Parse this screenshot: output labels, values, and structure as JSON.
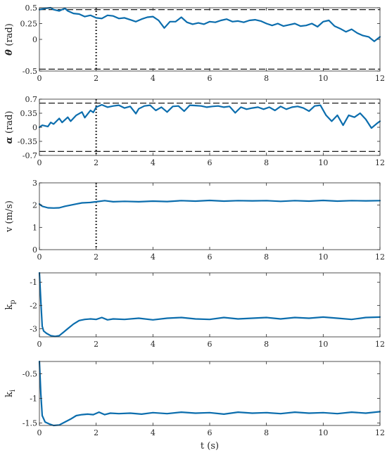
{
  "colors": {
    "series": "#0b6dad",
    "axis": "#262626",
    "limit": "#000000"
  },
  "xlabel": "t (s)",
  "chart_data": [
    {
      "type": "line",
      "ylabel": {
        "symbol": "θ",
        "unit": "(rad)"
      },
      "xlim": [
        0,
        12
      ],
      "ylim": [
        -0.5,
        0.5
      ],
      "xticks": [
        0,
        2,
        4,
        6,
        8,
        10,
        12
      ],
      "yticks": [
        -0.5,
        0,
        0.25,
        0.5
      ],
      "ytick_labels": [
        "-0.5",
        "0",
        "0.25",
        "0.5"
      ],
      "hlines": [
        0.47,
        -0.47
      ],
      "vline": 2,
      "series": [
        {
          "x": [
            0,
            0.2,
            0.4,
            0.5,
            0.7,
            0.9,
            1.0,
            1.2,
            1.4,
            1.6,
            1.8,
            2.0,
            2.2,
            2.4,
            2.6,
            2.8,
            3.0,
            3.2,
            3.4,
            3.6,
            3.8,
            4.0,
            4.2,
            4.4,
            4.6,
            4.8,
            5.0,
            5.2,
            5.4,
            5.6,
            5.8,
            6.0,
            6.2,
            6.4,
            6.6,
            6.8,
            7.0,
            7.2,
            7.4,
            7.6,
            7.8,
            8.0,
            8.2,
            8.4,
            8.6,
            8.8,
            9.0,
            9.2,
            9.4,
            9.6,
            9.8,
            10.0,
            10.2,
            10.4,
            10.6,
            10.8,
            11.0,
            11.2,
            11.4,
            11.6,
            11.8,
            12.0
          ],
          "y": [
            0.47,
            0.49,
            0.5,
            0.47,
            0.45,
            0.49,
            0.45,
            0.41,
            0.4,
            0.36,
            0.38,
            0.34,
            0.33,
            0.38,
            0.37,
            0.33,
            0.34,
            0.31,
            0.28,
            0.32,
            0.35,
            0.36,
            0.3,
            0.18,
            0.28,
            0.28,
            0.35,
            0.27,
            0.24,
            0.26,
            0.24,
            0.28,
            0.27,
            0.3,
            0.32,
            0.28,
            0.29,
            0.27,
            0.3,
            0.31,
            0.29,
            0.25,
            0.22,
            0.25,
            0.21,
            0.23,
            0.25,
            0.21,
            0.22,
            0.25,
            0.2,
            0.28,
            0.3,
            0.21,
            0.17,
            0.12,
            0.16,
            0.1,
            0.06,
            0.04,
            -0.03,
            0.04
          ]
        }
      ]
    },
    {
      "type": "line",
      "ylabel": {
        "symbol": "α",
        "unit": "(rad)"
      },
      "xlim": [
        0,
        12
      ],
      "ylim": [
        -0.7,
        0.7
      ],
      "xticks": [
        0,
        2,
        4,
        6,
        8,
        10,
        12
      ],
      "yticks": [
        -0.7,
        -0.35,
        0,
        0.35,
        0.7
      ],
      "ytick_labels": [
        "-0.7",
        "-0.35",
        "0",
        "0.35",
        "0.7"
      ],
      "hlines": [
        0.6,
        -0.6
      ],
      "vline": 2,
      "series": [
        {
          "x": [
            0,
            0.1,
            0.3,
            0.4,
            0.5,
            0.7,
            0.8,
            1.0,
            1.1,
            1.3,
            1.5,
            1.6,
            1.8,
            1.9,
            2.0,
            2.2,
            2.4,
            2.6,
            2.8,
            3.0,
            3.2,
            3.4,
            3.5,
            3.7,
            3.9,
            4.1,
            4.3,
            4.5,
            4.7,
            4.9,
            5.1,
            5.3,
            5.5,
            5.7,
            5.9,
            6.1,
            6.3,
            6.5,
            6.7,
            6.9,
            7.1,
            7.3,
            7.5,
            7.7,
            7.9,
            8.1,
            8.3,
            8.5,
            8.7,
            8.9,
            9.1,
            9.3,
            9.5,
            9.7,
            9.9,
            10.1,
            10.3,
            10.5,
            10.7,
            10.9,
            11.1,
            11.3,
            11.5,
            11.7,
            11.9,
            12.0
          ],
          "y": [
            0.0,
            0.05,
            0.02,
            0.12,
            0.08,
            0.22,
            0.12,
            0.25,
            0.15,
            0.3,
            0.38,
            0.24,
            0.42,
            0.37,
            0.5,
            0.56,
            0.5,
            0.53,
            0.55,
            0.48,
            0.52,
            0.34,
            0.46,
            0.53,
            0.55,
            0.42,
            0.5,
            0.38,
            0.52,
            0.53,
            0.4,
            0.55,
            0.54,
            0.53,
            0.5,
            0.52,
            0.53,
            0.5,
            0.52,
            0.36,
            0.5,
            0.45,
            0.48,
            0.5,
            0.45,
            0.5,
            0.42,
            0.52,
            0.45,
            0.5,
            0.52,
            0.48,
            0.4,
            0.53,
            0.55,
            0.3,
            0.15,
            0.3,
            0.05,
            0.3,
            0.25,
            0.35,
            0.2,
            -0.02,
            0.1,
            0.15
          ]
        }
      ]
    },
    {
      "type": "line",
      "ylabel": {
        "text": "v (m/s)"
      },
      "xlim": [
        0,
        12
      ],
      "ylim": [
        0,
        3
      ],
      "xticks": [
        0,
        2,
        4,
        6,
        8,
        10,
        12
      ],
      "yticks": [
        0,
        1,
        2,
        3
      ],
      "ytick_labels": [
        "0",
        "1",
        "2",
        "3"
      ],
      "hlines": [],
      "vline": 2,
      "series": [
        {
          "x": [
            0,
            0.1,
            0.3,
            0.5,
            0.7,
            0.9,
            1.1,
            1.3,
            1.5,
            1.8,
            2.0,
            2.3,
            2.6,
            3.0,
            3.5,
            4.0,
            4.5,
            5.0,
            5.5,
            6.0,
            6.5,
            7.0,
            7.5,
            8.0,
            8.5,
            9.0,
            9.5,
            10.0,
            10.5,
            11.0,
            11.5,
            12.0
          ],
          "y": [
            2.05,
            1.95,
            1.88,
            1.87,
            1.88,
            1.95,
            2.0,
            2.05,
            2.1,
            2.12,
            2.15,
            2.2,
            2.15,
            2.17,
            2.15,
            2.18,
            2.16,
            2.2,
            2.18,
            2.21,
            2.18,
            2.2,
            2.19,
            2.2,
            2.17,
            2.2,
            2.18,
            2.21,
            2.18,
            2.2,
            2.19,
            2.2
          ]
        }
      ]
    },
    {
      "type": "line",
      "ylabel": {
        "text": "k",
        "sub": "p"
      },
      "xlim": [
        0,
        12
      ],
      "ylim": [
        -3.35,
        -0.6
      ],
      "xticks": [
        0,
        2,
        4,
        6,
        8,
        10,
        12
      ],
      "yticks": [
        -3,
        -2,
        -1
      ],
      "ytick_labels": [
        "-3",
        "-2",
        "-1"
      ],
      "hlines": [],
      "vline": null,
      "series": [
        {
          "x": [
            0,
            0.05,
            0.1,
            0.15,
            0.25,
            0.4,
            0.55,
            0.7,
            0.85,
            1.0,
            1.2,
            1.4,
            1.6,
            1.8,
            2.0,
            2.2,
            2.4,
            2.6,
            3.0,
            3.5,
            4.0,
            4.5,
            5.0,
            5.5,
            6.0,
            6.5,
            7.0,
            7.5,
            8.0,
            8.5,
            9.0,
            9.5,
            10.0,
            10.5,
            11.0,
            11.5,
            12.0
          ],
          "y": [
            -0.6,
            -1.8,
            -2.9,
            -3.1,
            -3.2,
            -3.3,
            -3.33,
            -3.3,
            -3.15,
            -3.0,
            -2.8,
            -2.65,
            -2.6,
            -2.58,
            -2.6,
            -2.52,
            -2.62,
            -2.58,
            -2.6,
            -2.55,
            -2.62,
            -2.55,
            -2.52,
            -2.58,
            -2.6,
            -2.52,
            -2.58,
            -2.55,
            -2.52,
            -2.58,
            -2.52,
            -2.55,
            -2.5,
            -2.55,
            -2.6,
            -2.52,
            -2.5
          ]
        }
      ]
    },
    {
      "type": "line",
      "ylabel": {
        "text": "k",
        "sub": "i"
      },
      "xlim": [
        0,
        12
      ],
      "ylim": [
        -1.55,
        -0.25
      ],
      "xticks": [
        0,
        2,
        4,
        6,
        8,
        10,
        12
      ],
      "yticks": [
        -1.5,
        -1,
        -0.5
      ],
      "ytick_labels": [
        "-1.5",
        "-1",
        "-0.5"
      ],
      "hlines": [],
      "vline": null,
      "series": [
        {
          "x": [
            0,
            0.05,
            0.1,
            0.2,
            0.35,
            0.5,
            0.7,
            0.9,
            1.1,
            1.3,
            1.5,
            1.7,
            1.9,
            2.1,
            2.3,
            2.5,
            2.8,
            3.2,
            3.6,
            4.0,
            4.5,
            5.0,
            5.5,
            6.0,
            6.5,
            7.0,
            7.5,
            8.0,
            8.5,
            9.0,
            9.5,
            10.0,
            10.5,
            11.0,
            11.5,
            12.0
          ],
          "y": [
            -0.25,
            -0.9,
            -1.35,
            -1.48,
            -1.52,
            -1.55,
            -1.54,
            -1.48,
            -1.42,
            -1.35,
            -1.33,
            -1.32,
            -1.33,
            -1.28,
            -1.33,
            -1.3,
            -1.31,
            -1.3,
            -1.32,
            -1.29,
            -1.31,
            -1.28,
            -1.3,
            -1.29,
            -1.32,
            -1.28,
            -1.3,
            -1.29,
            -1.31,
            -1.28,
            -1.3,
            -1.29,
            -1.31,
            -1.28,
            -1.3,
            -1.27
          ]
        }
      ]
    }
  ]
}
